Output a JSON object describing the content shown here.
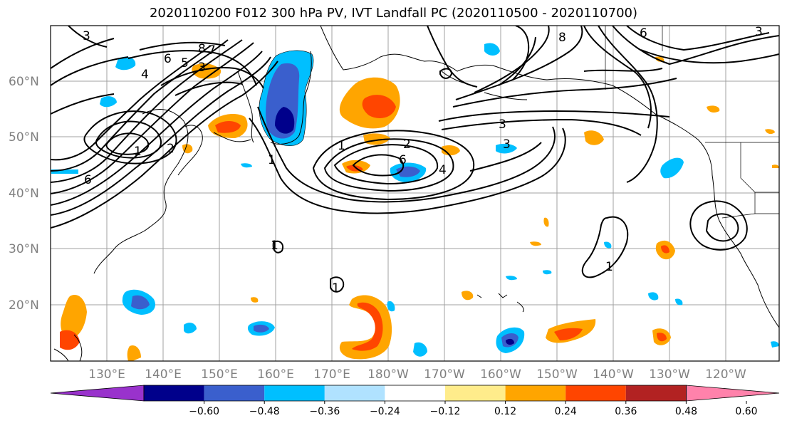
{
  "title": "2020110200 F012 300 hPa PV, IVT Landfall PC (2020110500 - 2020110700)",
  "lat_labels": [
    "60°N",
    "50°N",
    "40°N",
    "30°N",
    "20°N"
  ],
  "lon_labels": [
    "130°E",
    "140°E",
    "150°E",
    "160°E",
    "170°E",
    "180°W",
    "170°W",
    "160°W",
    "150°W",
    "140°W",
    "130°W",
    "120°W"
  ],
  "colorbar": {
    "ticks": [
      "−0.60",
      "−0.48",
      "−0.36",
      "−0.24",
      "−0.12",
      "0.12",
      "0.24",
      "0.36",
      "0.48",
      "0.60"
    ],
    "colors": [
      "#9932CC",
      "#00008B",
      "#3A5FCD",
      "#00BFFF",
      "#B0E2FF",
      "#FFFFFF",
      "#FFEC8B",
      "#FFA500",
      "#FF4500",
      "#B22222",
      "#FF82AB"
    ]
  },
  "contour_labels": [
    "3",
    "4",
    "6",
    "5",
    "8",
    "7",
    "3",
    "2",
    "1",
    "6",
    "1",
    "2",
    "6",
    "4",
    "3",
    "3",
    "8",
    "1",
    "1",
    "1",
    "1",
    "6",
    "3"
  ]
}
